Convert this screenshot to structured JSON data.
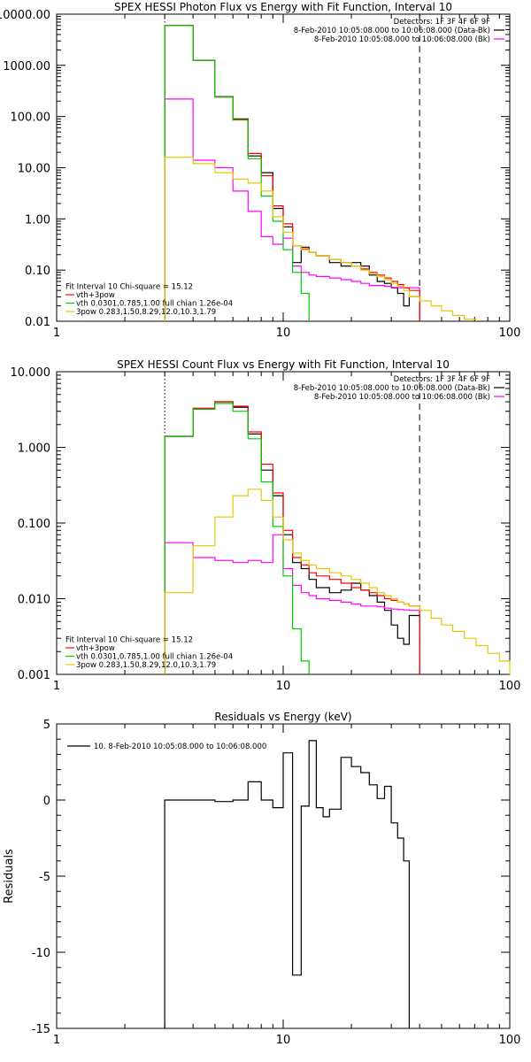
{
  "chart_data": [
    {
      "type": "line",
      "id": "photon",
      "title": "SPEX HESSI Photon Flux vs Energy with Fit Function, Interval 10",
      "xlabel": "",
      "ylabel": "",
      "xscale": "log",
      "yscale": "log",
      "xlim": [
        1,
        100
      ],
      "ylim": [
        0.01,
        10000
      ],
      "xticks": [
        {
          "v": 1,
          "label": "1"
        },
        {
          "v": 10,
          "label": "10"
        },
        {
          "v": 100,
          "label": "100"
        }
      ],
      "yticks": [
        {
          "v": 0.01,
          "label": "0.01"
        },
        {
          "v": 0.1,
          "label": "0.10"
        },
        {
          "v": 1,
          "label": "1.00"
        },
        {
          "v": 10,
          "label": "10.00"
        },
        {
          "v": 100,
          "label": "100.00"
        },
        {
          "v": 1000,
          "label": "1000.00"
        },
        {
          "v": 10000,
          "label": "10000.00"
        }
      ],
      "vlines": [
        {
          "x": 3,
          "style": "dotted",
          "color": "#000000"
        },
        {
          "x": 40,
          "style": "dashed",
          "color": "#000000"
        }
      ],
      "header_lines": [
        {
          "text": "Detectors: 1F 3F 4F 6F 9F",
          "color": "#000000"
        },
        {
          "text": "8-Feb-2010 10:05:08.000 to 10:06:08.000 (Data-Bk)",
          "color": "#000000"
        },
        {
          "text": "8-Feb-2010 10:05:08.000 to 10:06:08.000 (Bk)",
          "color": "#ff00ff"
        }
      ],
      "fit_legend": [
        {
          "text": "Fit Interval 10   Chi-square = 15.12",
          "color": null
        },
        {
          "text": "vth+3pow",
          "color": "#ff0000"
        },
        {
          "text": "vth 0.0301,0.785,1.00  full chian 1.26e-04",
          "color": "#00cc00"
        },
        {
          "text": "3pow 0.283,1.50,8.29,12.0,10.3,1.79",
          "color": "#e6c800"
        }
      ],
      "edges": [
        3,
        4,
        5,
        6,
        7,
        8,
        9,
        10,
        11,
        12,
        13,
        14,
        16,
        18,
        20,
        22,
        24,
        26,
        28,
        30,
        32,
        34,
        36,
        40,
        45,
        50,
        56,
        63,
        71
      ],
      "series": [
        {
          "name": "Data-Bk",
          "color": "#000000",
          "start": 0,
          "values": [
            6000,
            1250,
            245,
            90,
            17,
            8,
            1.6,
            0.7,
            0.14,
            0.28,
            0.22,
            0.19,
            0.14,
            0.12,
            0.14,
            0.12,
            0.08,
            0.06,
            0.055,
            0.045,
            0.035,
            0.02,
            0.03
          ]
        },
        {
          "name": "Bk",
          "color": "#ff00ff",
          "start": 0,
          "values": [
            220,
            14,
            10,
            3.5,
            1.4,
            0.45,
            0.32,
            0.42,
            0.12,
            0.09,
            0.08,
            0.075,
            0.07,
            0.065,
            0.06,
            0.055,
            0.05,
            0.05,
            0.048,
            0.046,
            0.045,
            0.045,
            0.045
          ]
        },
        {
          "name": "vth+3pow",
          "color": "#ff0000",
          "start": 0,
          "values": [
            6000,
            1250,
            240,
            88,
            19,
            7,
            1.8,
            0.8,
            0.3,
            0.26,
            0.22,
            0.19,
            0.16,
            0.14,
            0.12,
            0.105,
            0.09,
            0.08,
            0.07,
            0.06,
            0.052,
            0.045,
            0.04
          ]
        },
        {
          "name": "vth",
          "color": "#00cc00",
          "start": 0,
          "values": [
            6000,
            1250,
            240,
            85,
            15,
            2.8,
            0.9,
            0.25,
            0.09,
            0.035
          ]
        },
        {
          "name": "3pow",
          "color": "#e6c800",
          "start": 0,
          "values": [
            16,
            12,
            8,
            6,
            5,
            3.5,
            1.1,
            0.55,
            0.3,
            0.25,
            0.22,
            0.19,
            0.16,
            0.14,
            0.12,
            0.1,
            0.085,
            0.075,
            0.065,
            0.055,
            0.048,
            0.04,
            0.03,
            0.025,
            0.02,
            0.016,
            0.013,
            0.011
          ]
        }
      ]
    },
    {
      "type": "line",
      "id": "count",
      "title": "SPEX HESSI Count Flux vs Energy with Fit Function, Interval 10",
      "xlabel": "",
      "ylabel": "",
      "xscale": "log",
      "yscale": "log",
      "xlim": [
        1,
        100
      ],
      "ylim": [
        0.001,
        10
      ],
      "xticks": [
        {
          "v": 1,
          "label": "1"
        },
        {
          "v": 10,
          "label": "10"
        },
        {
          "v": 100,
          "label": "100"
        }
      ],
      "yticks": [
        {
          "v": 0.001,
          "label": "0.001"
        },
        {
          "v": 0.01,
          "label": "0.010"
        },
        {
          "v": 0.1,
          "label": "0.100"
        },
        {
          "v": 1,
          "label": "1.000"
        },
        {
          "v": 10,
          "label": "10.000"
        }
      ],
      "vlines": [
        {
          "x": 3,
          "style": "dotted",
          "color": "#000000"
        },
        {
          "x": 40,
          "style": "dashed",
          "color": "#000000"
        }
      ],
      "header_lines": [
        {
          "text": "Detectors: 1F 3F 4F 6F 9F",
          "color": "#000000"
        },
        {
          "text": "8-Feb-2010 10:05:08.000 to 10:06:08.000 (Data-Bk)",
          "color": "#000000"
        },
        {
          "text": "8-Feb-2010 10:05:08.000 to 10:06:08.000 (Bk)",
          "color": "#ff00ff"
        }
      ],
      "fit_legend": [
        {
          "text": "Fit Interval 10   Chi-square = 15.12",
          "color": null
        },
        {
          "text": "vth+3pow",
          "color": "#ff0000"
        },
        {
          "text": "vth 0.0301,0.785,1.00  full chian 1.26e-04",
          "color": "#00cc00"
        },
        {
          "text": "3pow 0.283,1.50,8.29,12.0,10.3,1.79",
          "color": "#e6c800"
        }
      ],
      "edges": [
        3,
        4,
        5,
        6,
        7,
        8,
        9,
        10,
        11,
        12,
        13,
        14,
        16,
        18,
        20,
        22,
        24,
        26,
        28,
        30,
        32,
        34,
        36,
        40,
        45,
        50,
        56,
        63,
        71,
        80,
        90,
        100
      ],
      "series": [
        {
          "name": "Data-Bk",
          "color": "#000000",
          "start": 0,
          "values": [
            1.4,
            3.2,
            4.0,
            3.4,
            1.5,
            0.5,
            0.23,
            0.07,
            0.03,
            0.025,
            0.018,
            0.014,
            0.012,
            0.013,
            0.016,
            0.013,
            0.011,
            0.009,
            0.007,
            0.0045,
            0.003,
            0.0025,
            0.006
          ]
        },
        {
          "name": "Bk",
          "color": "#ff00ff",
          "start": 0,
          "values": [
            0.055,
            0.035,
            0.032,
            0.03,
            0.032,
            0.03,
            0.07,
            0.025,
            0.015,
            0.012,
            0.011,
            0.01,
            0.0095,
            0.009,
            0.0085,
            0.008,
            0.008,
            0.0078,
            0.0075,
            0.0073,
            0.0072,
            0.0071,
            0.007
          ]
        },
        {
          "name": "vth+3pow",
          "color": "#ff0000",
          "start": 0,
          "values": [
            1.4,
            3.3,
            4.0,
            3.5,
            1.6,
            0.6,
            0.25,
            0.08,
            0.035,
            0.028,
            0.022,
            0.02,
            0.018,
            0.016,
            0.014,
            0.013,
            0.012,
            0.011,
            0.01,
            0.0095,
            0.009,
            0.0085,
            0.008
          ]
        },
        {
          "name": "vth",
          "color": "#00cc00",
          "start": 0,
          "values": [
            1.4,
            3.2,
            3.8,
            3.0,
            1.3,
            0.35,
            0.09,
            0.02,
            0.004,
            0.0015
          ]
        },
        {
          "name": "3pow",
          "color": "#e6c800",
          "start": 0,
          "values": [
            0.012,
            0.05,
            0.12,
            0.23,
            0.28,
            0.2,
            0.12,
            0.06,
            0.04,
            0.032,
            0.028,
            0.025,
            0.022,
            0.02,
            0.018,
            0.016,
            0.014,
            0.012,
            0.011,
            0.01,
            0.009,
            0.0085,
            0.008,
            0.007,
            0.0055,
            0.0045,
            0.0037,
            0.003,
            0.0024,
            0.0019,
            0.0015
          ]
        }
      ]
    },
    {
      "type": "line",
      "id": "residuals",
      "title": "Residuals vs Energy (keV)",
      "xlabel": "",
      "ylabel": "Residuals",
      "xscale": "log",
      "yscale": "linear",
      "xlim": [
        1,
        100
      ],
      "ylim": [
        -15,
        5
      ],
      "xticks": [
        {
          "v": 1,
          "label": "1"
        },
        {
          "v": 10,
          "label": "10"
        },
        {
          "v": 100,
          "label": "100"
        }
      ],
      "yticks": [
        {
          "v": -15,
          "label": "-15"
        },
        {
          "v": -10,
          "label": "-10"
        },
        {
          "v": -5,
          "label": "-5"
        },
        {
          "v": 0,
          "label": "0"
        },
        {
          "v": 5,
          "label": "5"
        }
      ],
      "legend": "10.  8-Feb-2010 10:05:08.000 to 10:06:08.000",
      "edges": [
        3,
        4,
        5,
        6,
        7,
        8,
        9,
        10,
        11,
        12,
        13,
        14,
        15,
        16,
        18,
        20,
        22,
        24,
        26,
        28,
        30,
        32,
        34,
        36,
        40
      ],
      "series": [
        {
          "name": "10.  8-Feb-2010 10:05:08.000 to 10:06:08.000",
          "color": "#000000",
          "start": 0,
          "values": [
            0,
            0,
            -0.1,
            0,
            1.2,
            0,
            -0.5,
            3.1,
            -11.5,
            -0.4,
            3.9,
            -0.5,
            -1.1,
            -0.6,
            2.8,
            2.2,
            1.8,
            1.0,
            0.1,
            0.9,
            -1.5,
            -2.5,
            -4.0
          ]
        }
      ],
      "drop_to": -15
    }
  ]
}
